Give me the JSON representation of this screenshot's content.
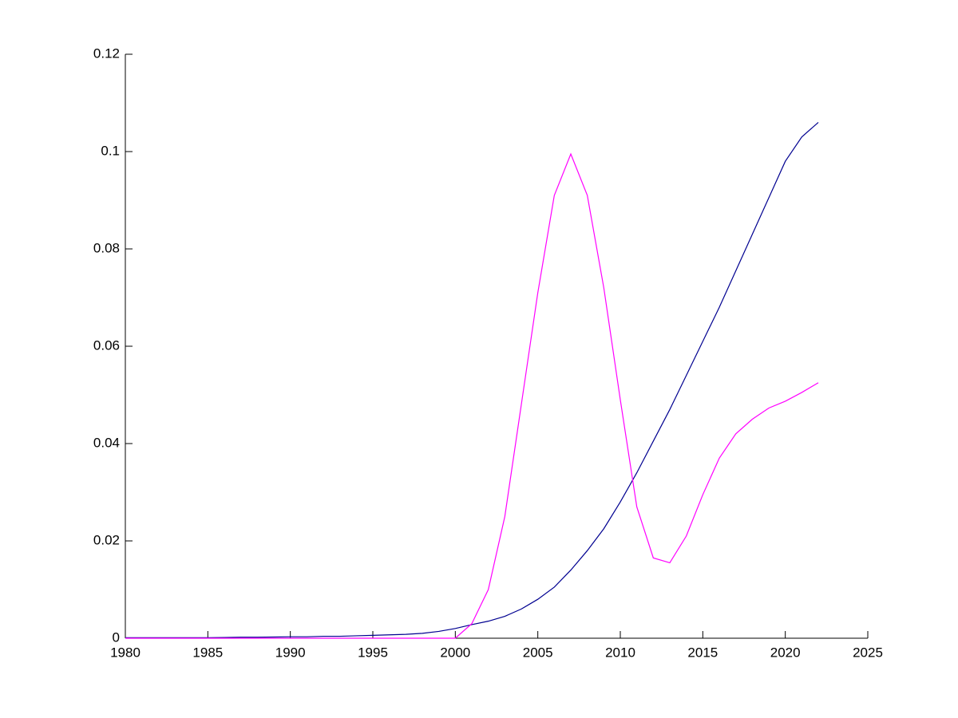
{
  "chart_data": {
    "type": "line",
    "x": [
      1980,
      1981,
      1982,
      1983,
      1984,
      1985,
      1986,
      1987,
      1988,
      1989,
      1990,
      1991,
      1992,
      1993,
      1994,
      1995,
      1996,
      1997,
      1998,
      1999,
      2000,
      2001,
      2002,
      2003,
      2004,
      2005,
      2006,
      2007,
      2008,
      2009,
      2010,
      2011,
      2012,
      2013,
      2014,
      2015,
      2016,
      2017,
      2018,
      2019,
      2020,
      2021,
      2022
    ],
    "series": [
      {
        "color": "#000090",
        "values": [
          0.0001,
          0.0001,
          0.0001,
          0.0001,
          0.0001,
          0.0001,
          0.00015,
          0.0002,
          0.0002,
          0.00025,
          0.0003,
          0.0003,
          0.0004,
          0.0004,
          0.0005,
          0.0006,
          0.0007,
          0.0008,
          0.001,
          0.0014,
          0.002,
          0.0028,
          0.0035,
          0.0045,
          0.006,
          0.008,
          0.0105,
          0.014,
          0.018,
          0.0225,
          0.028,
          0.034,
          0.0405,
          0.047,
          0.054,
          0.061,
          0.068,
          0.0755,
          0.083,
          0.0905,
          0.098,
          0.103,
          0.106
        ]
      },
      {
        "color": "#ff00ff",
        "values": [
          0,
          0,
          0,
          0,
          0,
          0,
          0,
          0,
          0,
          0,
          0,
          0,
          0,
          0,
          0,
          0,
          0,
          0,
          0,
          0,
          0,
          0.003,
          0.01,
          0.025,
          0.048,
          0.071,
          0.091,
          0.0995,
          0.091,
          0.072,
          0.049,
          0.027,
          0.0165,
          0.0155,
          0.021,
          0.0295,
          0.037,
          0.042,
          0.045,
          0.0473,
          0.0487,
          0.0505,
          0.0525
        ]
      }
    ],
    "xlim": [
      1980,
      2025
    ],
    "xticks": [
      1980,
      1985,
      1990,
      1995,
      2000,
      2005,
      2010,
      2015,
      2020,
      2025
    ],
    "ylim": [
      0,
      0.12
    ],
    "yticks": [
      0,
      0.02,
      0.04,
      0.06,
      0.08,
      0.1,
      0.12
    ]
  }
}
